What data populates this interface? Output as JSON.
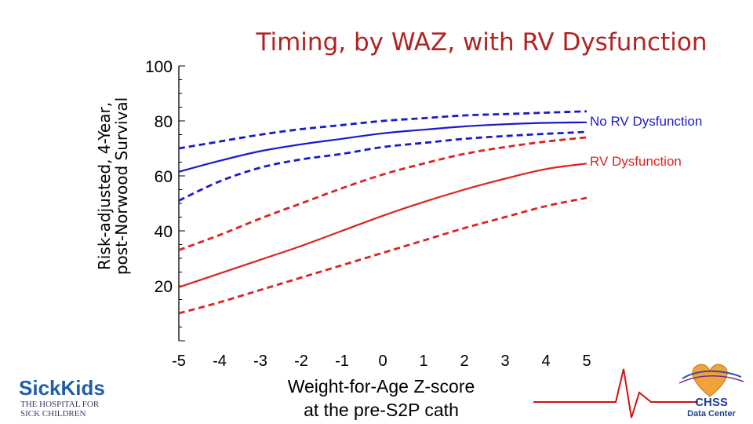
{
  "chart_data": {
    "type": "line",
    "title": "Timing, by WAZ, with RV Dysfunction",
    "ylabel_lines": [
      "Risk-adjusted, 4-Year,",
      "post-Norwood Survival"
    ],
    "xlabel_lines": [
      "Weight-for-Age Z-score",
      "at the pre-S2P cath"
    ],
    "xlim": [
      -5,
      5
    ],
    "ylim": [
      0,
      100
    ],
    "x_ticks": [
      "-5",
      "-4",
      "-3",
      "-2",
      "-1",
      "0",
      "1",
      "2",
      "3",
      "4",
      "5"
    ],
    "y_ticks": [
      "20",
      "40",
      "60",
      "80",
      "100"
    ],
    "x": [
      -5,
      -4,
      -3,
      -2,
      -1,
      0,
      1,
      2,
      3,
      4,
      5
    ],
    "series": [
      {
        "name": "No RV Dysfunction",
        "color": "#1a1acc",
        "style": "solid",
        "values": [
          61.5,
          65.5,
          69,
          71.5,
          73.5,
          75.5,
          76.8,
          78,
          78.8,
          79.3,
          79.5
        ]
      },
      {
        "name": "No RV Dysfunction upper CI",
        "color": "#1a1acc",
        "style": "dashed",
        "values": [
          70,
          72.5,
          75,
          77,
          78.5,
          80,
          81,
          82,
          82.5,
          83,
          83.5
        ]
      },
      {
        "name": "No RV Dysfunction lower CI",
        "color": "#1a1acc",
        "style": "dashed",
        "values": [
          51,
          58,
          63,
          66,
          68,
          70.5,
          72,
          73.5,
          74.5,
          75.3,
          76
        ]
      },
      {
        "name": "RV Dysfunction",
        "color": "#dd2222",
        "style": "solid",
        "values": [
          19.5,
          24.5,
          29.5,
          34.5,
          40,
          45.5,
          50.5,
          55,
          59,
          62.5,
          64.5
        ]
      },
      {
        "name": "RV Dysfunction upper CI",
        "color": "#dd2222",
        "style": "dashed",
        "values": [
          33,
          38.5,
          44.5,
          50,
          55.5,
          60.5,
          64.5,
          68,
          70.5,
          72.5,
          74
        ]
      },
      {
        "name": "RV Dysfunction lower CI",
        "color": "#dd2222",
        "style": "dashed",
        "values": [
          10,
          14,
          18.5,
          23,
          27.5,
          32,
          36.5,
          41,
          45,
          49,
          52
        ]
      }
    ],
    "annotations": [
      {
        "text": "No RV Dysfunction",
        "color": "#1a1acc",
        "x": 5,
        "y": 80
      },
      {
        "text": "RV Dysfunction",
        "color": "#dd2222",
        "x": 5,
        "y": 65
      }
    ]
  },
  "logos": {
    "left": {
      "brand": "SickKids",
      "line1": "THE HOSPITAL FOR",
      "line2": "SICK CHILDREN"
    },
    "right": {
      "line1": "CHSS",
      "line2": "Data Center"
    }
  }
}
